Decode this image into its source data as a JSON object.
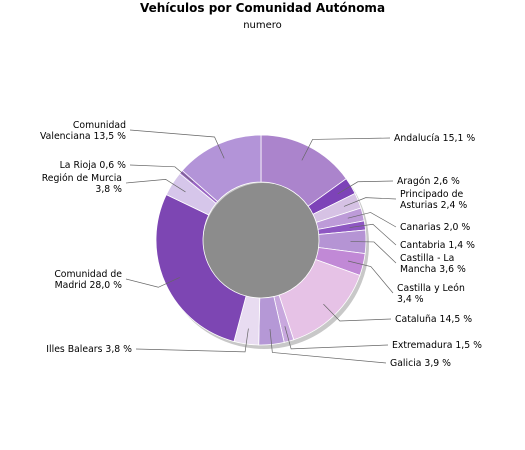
{
  "chart_data": {
    "type": "donut",
    "title": "Vehículos por Comunidad Autónoma",
    "subtitle": "numero",
    "slices": [
      {
        "label": [
          "Andalucía 15,1 %"
        ],
        "value": 15.1,
        "color": "#ab84cc"
      },
      {
        "label": [
          "Aragón 2,6 %"
        ],
        "value": 2.6,
        "color": "#7d43b8"
      },
      {
        "label": [
          "Principado de",
          "Asturias 2,4 %"
        ],
        "value": 2.4,
        "color": "#d6c2e4"
      },
      {
        "label": [
          "Canarias 2,0 %"
        ],
        "value": 2.0,
        "color": "#bd9bd8"
      },
      {
        "label": [
          "Cantabria 1,4 %"
        ],
        "value": 1.4,
        "color": "#8e57c2"
      },
      {
        "label": [
          "Castilla - La",
          "Mancha 3,6 %"
        ],
        "value": 3.6,
        "color": "#b594d4"
      },
      {
        "label": [
          "Castilla y León",
          "3,4 %"
        ],
        "value": 3.4,
        "color": "#c189d6"
      },
      {
        "label": [
          "Cataluña 14,5 %"
        ],
        "value": 14.5,
        "color": "#e6c2e6"
      },
      {
        "label": [
          "Extremadura 1,5 %"
        ],
        "value": 1.5,
        "color": "#c8a8de"
      },
      {
        "label": [
          "Galicia 3,9 %"
        ],
        "value": 3.9,
        "color": "#b598d6"
      },
      {
        "label": [
          "Illes Balears 3,8 %"
        ],
        "value": 3.8,
        "color": "#e8dcf1"
      },
      {
        "label": [
          "Comunidad de",
          "Madrid 28,0 %"
        ],
        "value": 28.0,
        "color": "#7d46b3"
      },
      {
        "label": [
          "Región de Murcia",
          "3,8 %"
        ],
        "value": 3.8,
        "color": "#d6c6ea"
      },
      {
        "label": [
          "La Rioja 0,6 %"
        ],
        "value": 0.6,
        "color": "#9a66c4"
      },
      {
        "label": [
          "Comunidad",
          "Valenciana 13,5 %"
        ],
        "value": 13.5,
        "color": "#b394d8"
      }
    ]
  }
}
